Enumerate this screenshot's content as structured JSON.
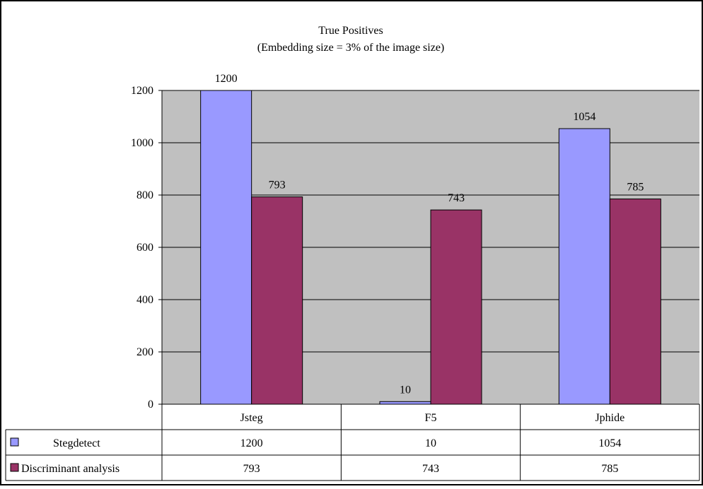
{
  "chart_data": {
    "type": "bar",
    "title": "True Positives",
    "subtitle": "(Embedding size = 3% of the image size)",
    "categories": [
      "Jsteg",
      "F5",
      "Jphide"
    ],
    "series": [
      {
        "name": "Stegdetect",
        "values": [
          1200,
          10,
          1054
        ],
        "color": "#9999ff"
      },
      {
        "name": "Discriminant analysis",
        "values": [
          793,
          743,
          785
        ],
        "color": "#993366"
      }
    ],
    "ylim": [
      0,
      1200
    ],
    "yticks": [
      0,
      200,
      400,
      600,
      800,
      1000,
      1200
    ],
    "grid": true,
    "plot_background": "#c0c0c0",
    "legend_placement": "data-table",
    "data_labels": true
  }
}
